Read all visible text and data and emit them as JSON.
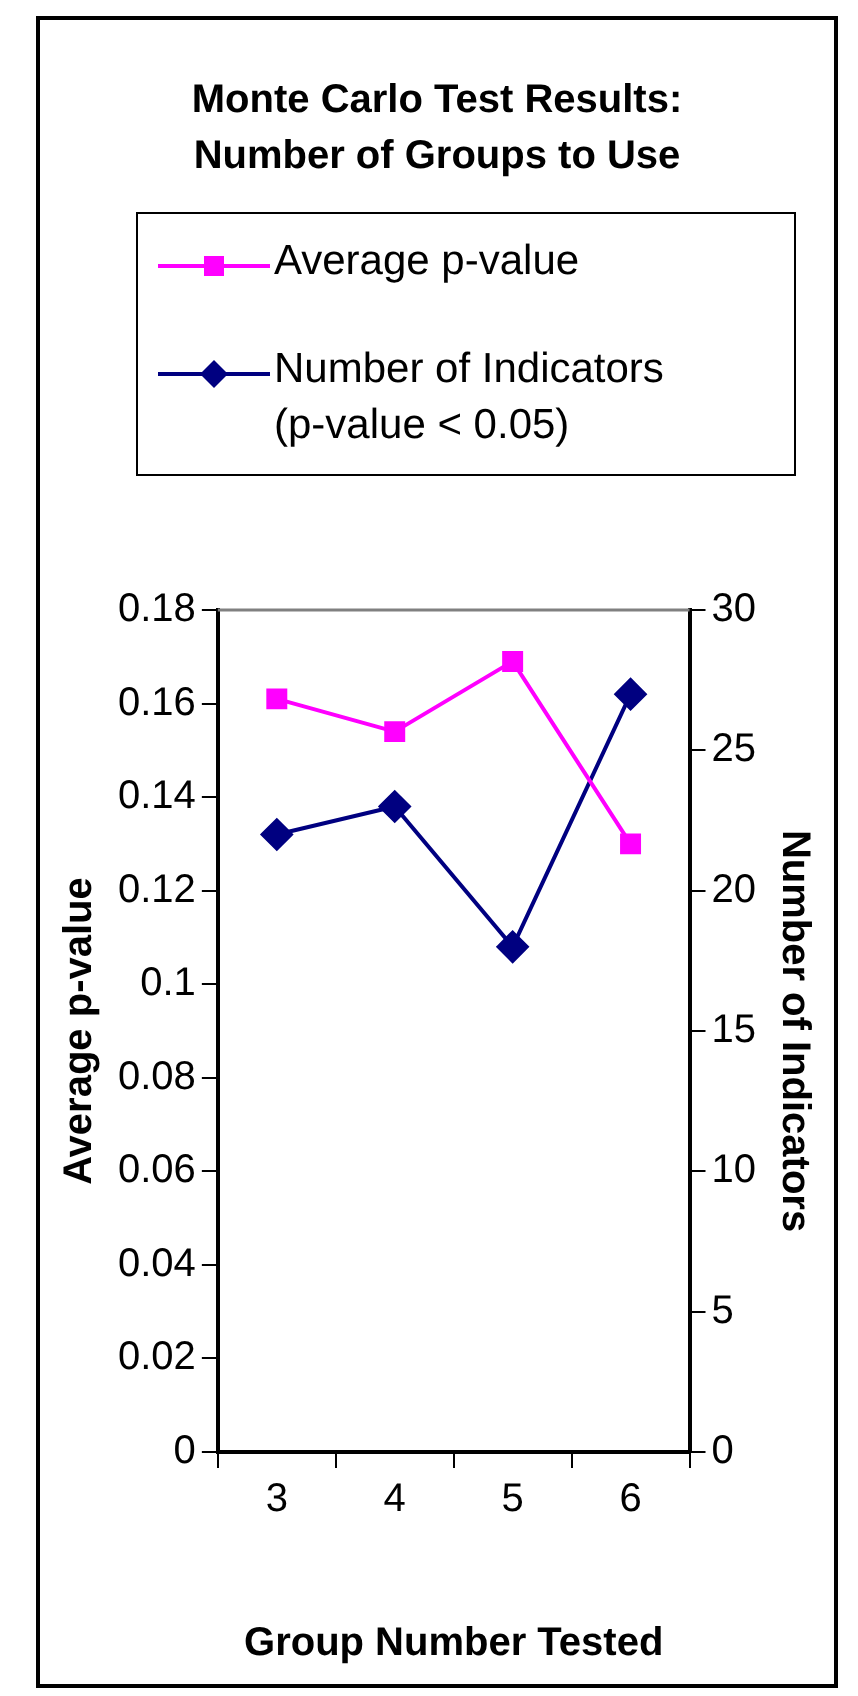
{
  "chart_data": {
    "type": "line",
    "title": "Monte Carlo Test Results: Number of Groups to Use",
    "xlabel": "Group Number Tested",
    "ylabel": "Average p-value",
    "y2label": "Number of Indicators",
    "categories": [
      "3",
      "4",
      "5",
      "6"
    ],
    "series": [
      {
        "name": "Average p-value",
        "color": "#ff00ff",
        "values": [
          0.161,
          0.154,
          0.169,
          0.13
        ],
        "marker": "square"
      },
      {
        "name": "Number of Indicators (p-value < 0.05)",
        "color": "#000080",
        "values": [
          22,
          23,
          18,
          27
        ],
        "axis": "y2",
        "marker": "diamond"
      }
    ],
    "ylim": [
      0,
      0.18
    ],
    "yticks": [
      0,
      0.02,
      0.04,
      0.06,
      0.08,
      0.1,
      0.12,
      0.14,
      0.16,
      0.18
    ],
    "y2lim": [
      0,
      30
    ],
    "y2ticks": [
      0,
      5,
      10,
      15,
      20,
      25,
      30
    ],
    "grid": false,
    "legend": "top"
  }
}
